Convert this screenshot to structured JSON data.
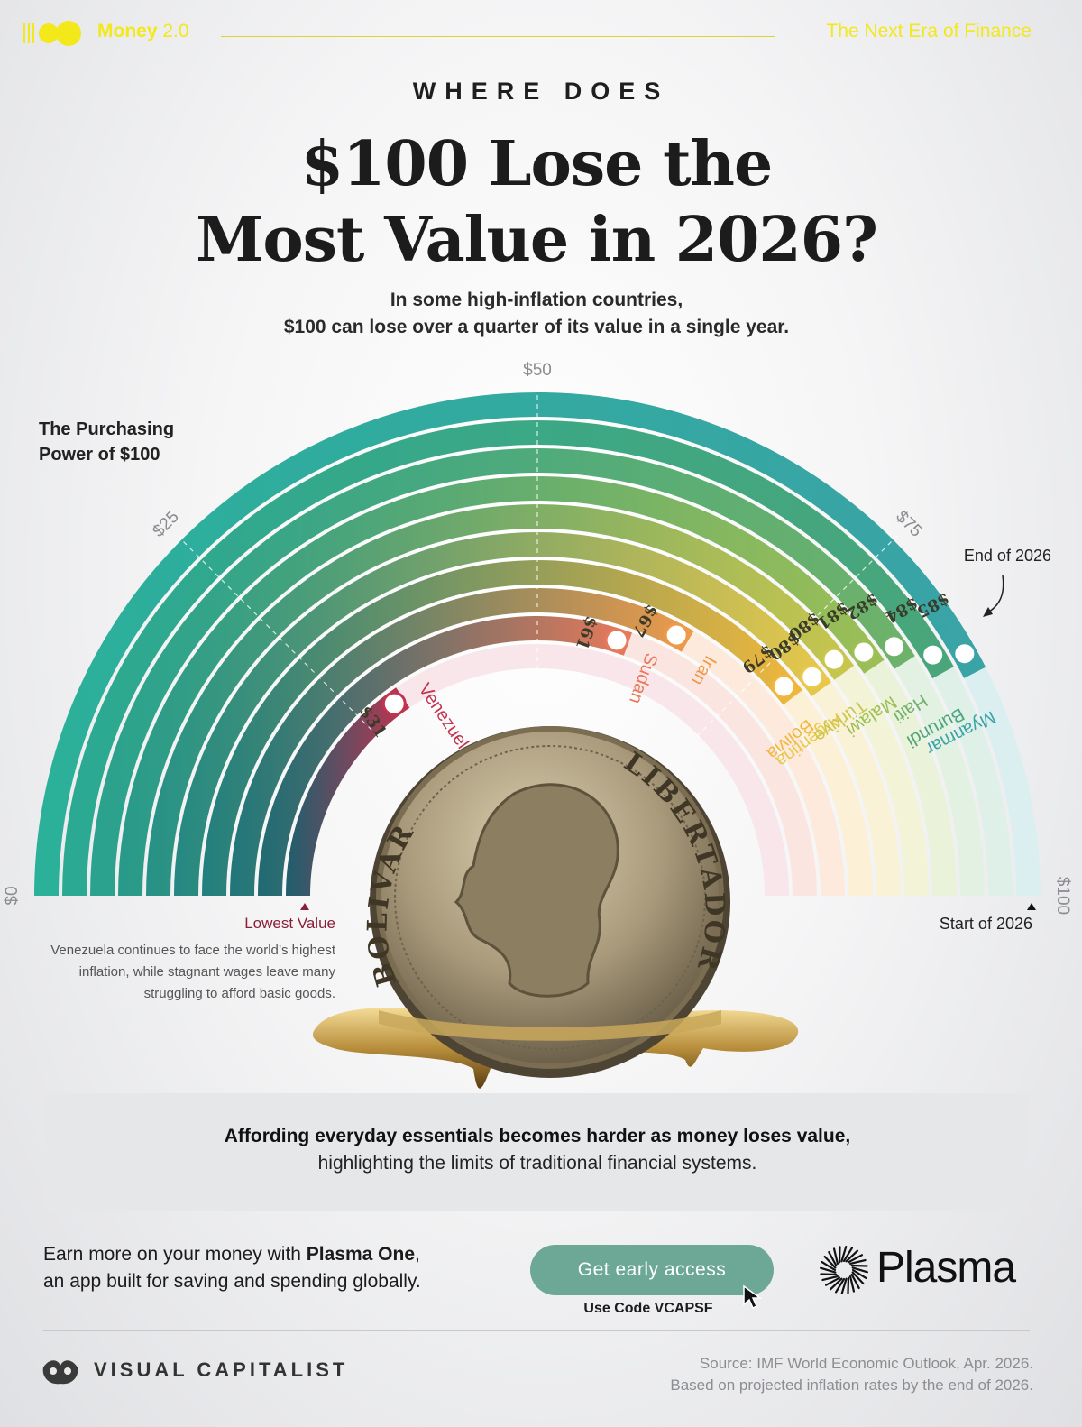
{
  "header": {
    "brand_bold": "Money",
    "brand_light": "2.0",
    "tagline": "The Next Era of Finance",
    "brand_color": "#f2e81a"
  },
  "title": {
    "kicker": "WHERE DOES",
    "line1": "$100 Lose the",
    "line2": "Most Value in 2026?",
    "subtitle_l1": "In some high-inflation countries,",
    "subtitle_l2": "$100 can lose over a quarter of its value in a single year."
  },
  "chart_data": {
    "type": "radial-bar",
    "axis_title": "The Purchasing Power of $100",
    "axis_ticks": [
      {
        "value": 0,
        "label": "$0"
      },
      {
        "value": 25,
        "label": "$25"
      },
      {
        "value": 50,
        "label": "$50"
      },
      {
        "value": 75,
        "label": "$75"
      },
      {
        "value": 100,
        "label": "$100"
      }
    ],
    "axis_range": [
      0,
      100
    ],
    "start_label": "Start of 2026",
    "end_label": "End of 2026",
    "series": [
      {
        "country": "Venezuela",
        "value": 31,
        "label": "$31",
        "color_start": "#1e5f6e",
        "color_end": "#c2334f",
        "pale": "#f8e6ea"
      },
      {
        "country": "Sudan",
        "value": 61,
        "label": "$61",
        "color_start": "#1f6b73",
        "color_end": "#e8795a",
        "pale": "#fbe5e1"
      },
      {
        "country": "Iran",
        "value": 67,
        "label": "$67",
        "color_start": "#20767a",
        "color_end": "#ef9a4a",
        "pale": "#fdeadc"
      },
      {
        "country": "Bolivia",
        "value": 79,
        "label": "$79",
        "color_start": "#227f7e",
        "color_end": "#f1b73c",
        "pale": "#fcf0d6"
      },
      {
        "country": "Argentina",
        "value": 80,
        "label": "$80",
        "color_start": "#248882",
        "color_end": "#e9c84a",
        "pale": "#f9f2d7"
      },
      {
        "country": "Türkiye",
        "value": 80,
        "label": "$80",
        "color_start": "#269186",
        "color_end": "#c9c64c",
        "pale": "#f3f3d8"
      },
      {
        "country": "Malawi",
        "value": 81,
        "label": "$81",
        "color_start": "#289a8a",
        "color_end": "#9dbf55",
        "pale": "#eaf2da"
      },
      {
        "country": "Haiti",
        "value": 82,
        "label": "$82",
        "color_start": "#2aa28e",
        "color_end": "#6fb26a",
        "pale": "#e3f1e2"
      },
      {
        "country": "Burundi",
        "value": 84,
        "label": "$84",
        "color_start": "#2ba992",
        "color_end": "#4aa67a",
        "pale": "#def0e8"
      },
      {
        "country": "Myanmar",
        "value": 85,
        "label": "$85",
        "color_start": "#2bb09a",
        "color_end": "#3aa3a6",
        "pale": "#dbeff0"
      }
    ],
    "annotation_title": "Lowest Value",
    "annotation_text": "Venezuela continues to face the world’s highest inflation, while stagnant wages leave many struggling to afford basic goods."
  },
  "coin": {
    "left_text": "BOLIVAR",
    "right_text": "LIBERTADOR"
  },
  "callout": {
    "line1": "Affording everyday essentials becomes harder as money loses value,",
    "line2": "highlighting the limits of traditional financial systems."
  },
  "ad": {
    "text_pre": "Earn more on your money with ",
    "text_bold": "Plasma One",
    "text_post": ",",
    "text_l2": "an app built for saving and spending globally.",
    "cta_label": "Get early access",
    "code_label": "Use Code VCAPSF",
    "brand": "Plasma",
    "cta_color": "#6da896"
  },
  "footer": {
    "publisher": "VISUAL CAPITALIST",
    "source_l1": "Source: IMF World Economic Outlook, Apr. 2026.",
    "source_l2": "Based on projected inflation rates by the end of 2026."
  }
}
